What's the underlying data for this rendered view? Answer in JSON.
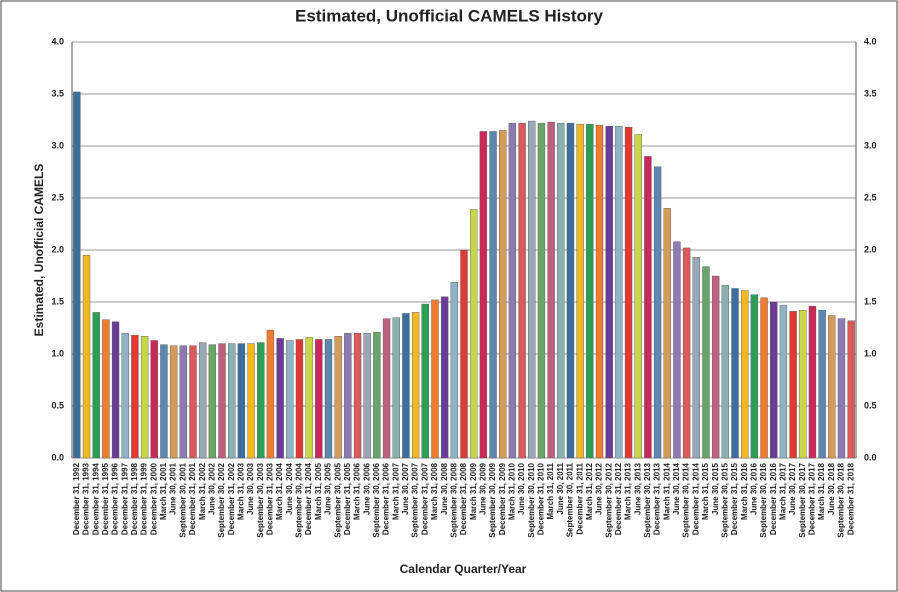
{
  "chart_data": {
    "type": "bar",
    "title": "Estimated, Unofficial CAMELS History",
    "x_label": "Calendar Quarter/Year",
    "y_label": "Estimated, Unofficial CAMELS",
    "categories": [
      "December 31, 1992",
      "December 31, 1993",
      "December 31, 1994",
      "December 31, 1995",
      "December 31, 1996",
      "December 31, 1997",
      "December 31, 1998",
      "December 31, 1999",
      "December 31, 2000",
      "March 31, 2001",
      "June 30, 2001",
      "September 30, 2001",
      "December 31, 2001",
      "March 31, 2002",
      "June 30, 2002",
      "September 30, 2002",
      "December 31, 2002",
      "March 31, 2003",
      "June 30, 2003",
      "September 30, 2003",
      "December 31, 2003",
      "March 31, 2004",
      "June 30, 2004",
      "September 30, 2004",
      "December 31, 2004",
      "March 31, 2005",
      "June 30, 2005",
      "September 30, 2005",
      "December 31, 2005",
      "March 31, 2006",
      "June 30, 2006",
      "September 30, 2006",
      "December 31, 2006",
      "March 31, 2007",
      "June 30, 2007",
      "September 30, 2007",
      "December 31, 2007",
      "March 31, 2008",
      "June 30, 2008",
      "September 30, 2008",
      "December 31, 2008",
      "March 31, 2009",
      "June 30, 2009",
      "September 30, 2009",
      "December 31, 2009",
      "March 31, 2010",
      "June 30, 2010",
      "September 30, 2010",
      "December 31, 2010",
      "March 31, 2011",
      "June 30, 2011",
      "September 30, 2011",
      "December 31, 2011",
      "March 31, 2012",
      "June 30, 2012",
      "September 30, 2012",
      "December 31, 2012",
      "March 31, 2013",
      "June 30, 2013",
      "September 30, 2013",
      "December 31, 2013",
      "March 31, 2014",
      "June 30, 2014",
      "September 30, 2014",
      "December 31, 2014",
      "March 31, 2015",
      "June 30, 2015",
      "September 30, 2015",
      "December 31, 2015",
      "March 31, 2016",
      "June 30, 2016",
      "September 30, 2016",
      "December 31, 2016",
      "March 31, 2017",
      "June 30, 2017",
      "September 30, 2017",
      "December 31, 2017",
      "March 31, 2018",
      "June 30, 2018",
      "September 30, 2018",
      "December 31, 2018"
    ],
    "values": [
      3.52,
      1.95,
      1.4,
      1.33,
      1.31,
      1.2,
      1.18,
      1.17,
      1.13,
      1.09,
      1.08,
      1.08,
      1.08,
      1.11,
      1.09,
      1.1,
      1.1,
      1.1,
      1.1,
      1.11,
      1.23,
      1.15,
      1.13,
      1.14,
      1.16,
      1.14,
      1.14,
      1.17,
      1.2,
      1.2,
      1.2,
      1.21,
      1.34,
      1.35,
      1.39,
      1.4,
      1.48,
      1.52,
      1.55,
      1.69,
      2.0,
      2.39,
      3.14,
      3.14,
      3.15,
      3.22,
      3.22,
      3.24,
      3.22,
      3.23,
      3.22,
      3.22,
      3.21,
      3.21,
      3.2,
      3.19,
      3.19,
      3.18,
      3.11,
      2.9,
      2.8,
      2.4,
      2.08,
      2.02,
      1.93,
      1.84,
      1.75,
      1.66,
      1.63,
      1.61,
      1.57,
      1.54,
      1.5,
      1.47,
      1.41,
      1.42,
      1.46,
      1.42,
      1.37,
      1.34,
      1.32
    ],
    "colors": [
      "#3d6f9c",
      "#f2b824",
      "#2e9e55",
      "#f07c30",
      "#6b3c96",
      "#8fb2c6",
      "#e03a36",
      "#c8d64a",
      "#c8285a",
      "#5f86ad",
      "#d49a5a",
      "#8e7ab2",
      "#d85a5a",
      "#9aa7b8",
      "#6aa56a",
      "#c06080",
      "#8ab0b0"
    ],
    "ylim": [
      0,
      4
    ],
    "yticks": [
      {
        "value": 0,
        "label": "0.0"
      },
      {
        "value": 0.5,
        "label": "0.5"
      },
      {
        "value": 1,
        "label": "1.0"
      },
      {
        "value": 1.5,
        "label": "1.5"
      },
      {
        "value": 2,
        "label": "2.0"
      },
      {
        "value": 2.5,
        "label": "2.5"
      },
      {
        "value": 3,
        "label": "3.0"
      },
      {
        "value": 3.5,
        "label": "3.5"
      },
      {
        "value": 4,
        "label": "4.0"
      }
    ],
    "grid": true
  }
}
